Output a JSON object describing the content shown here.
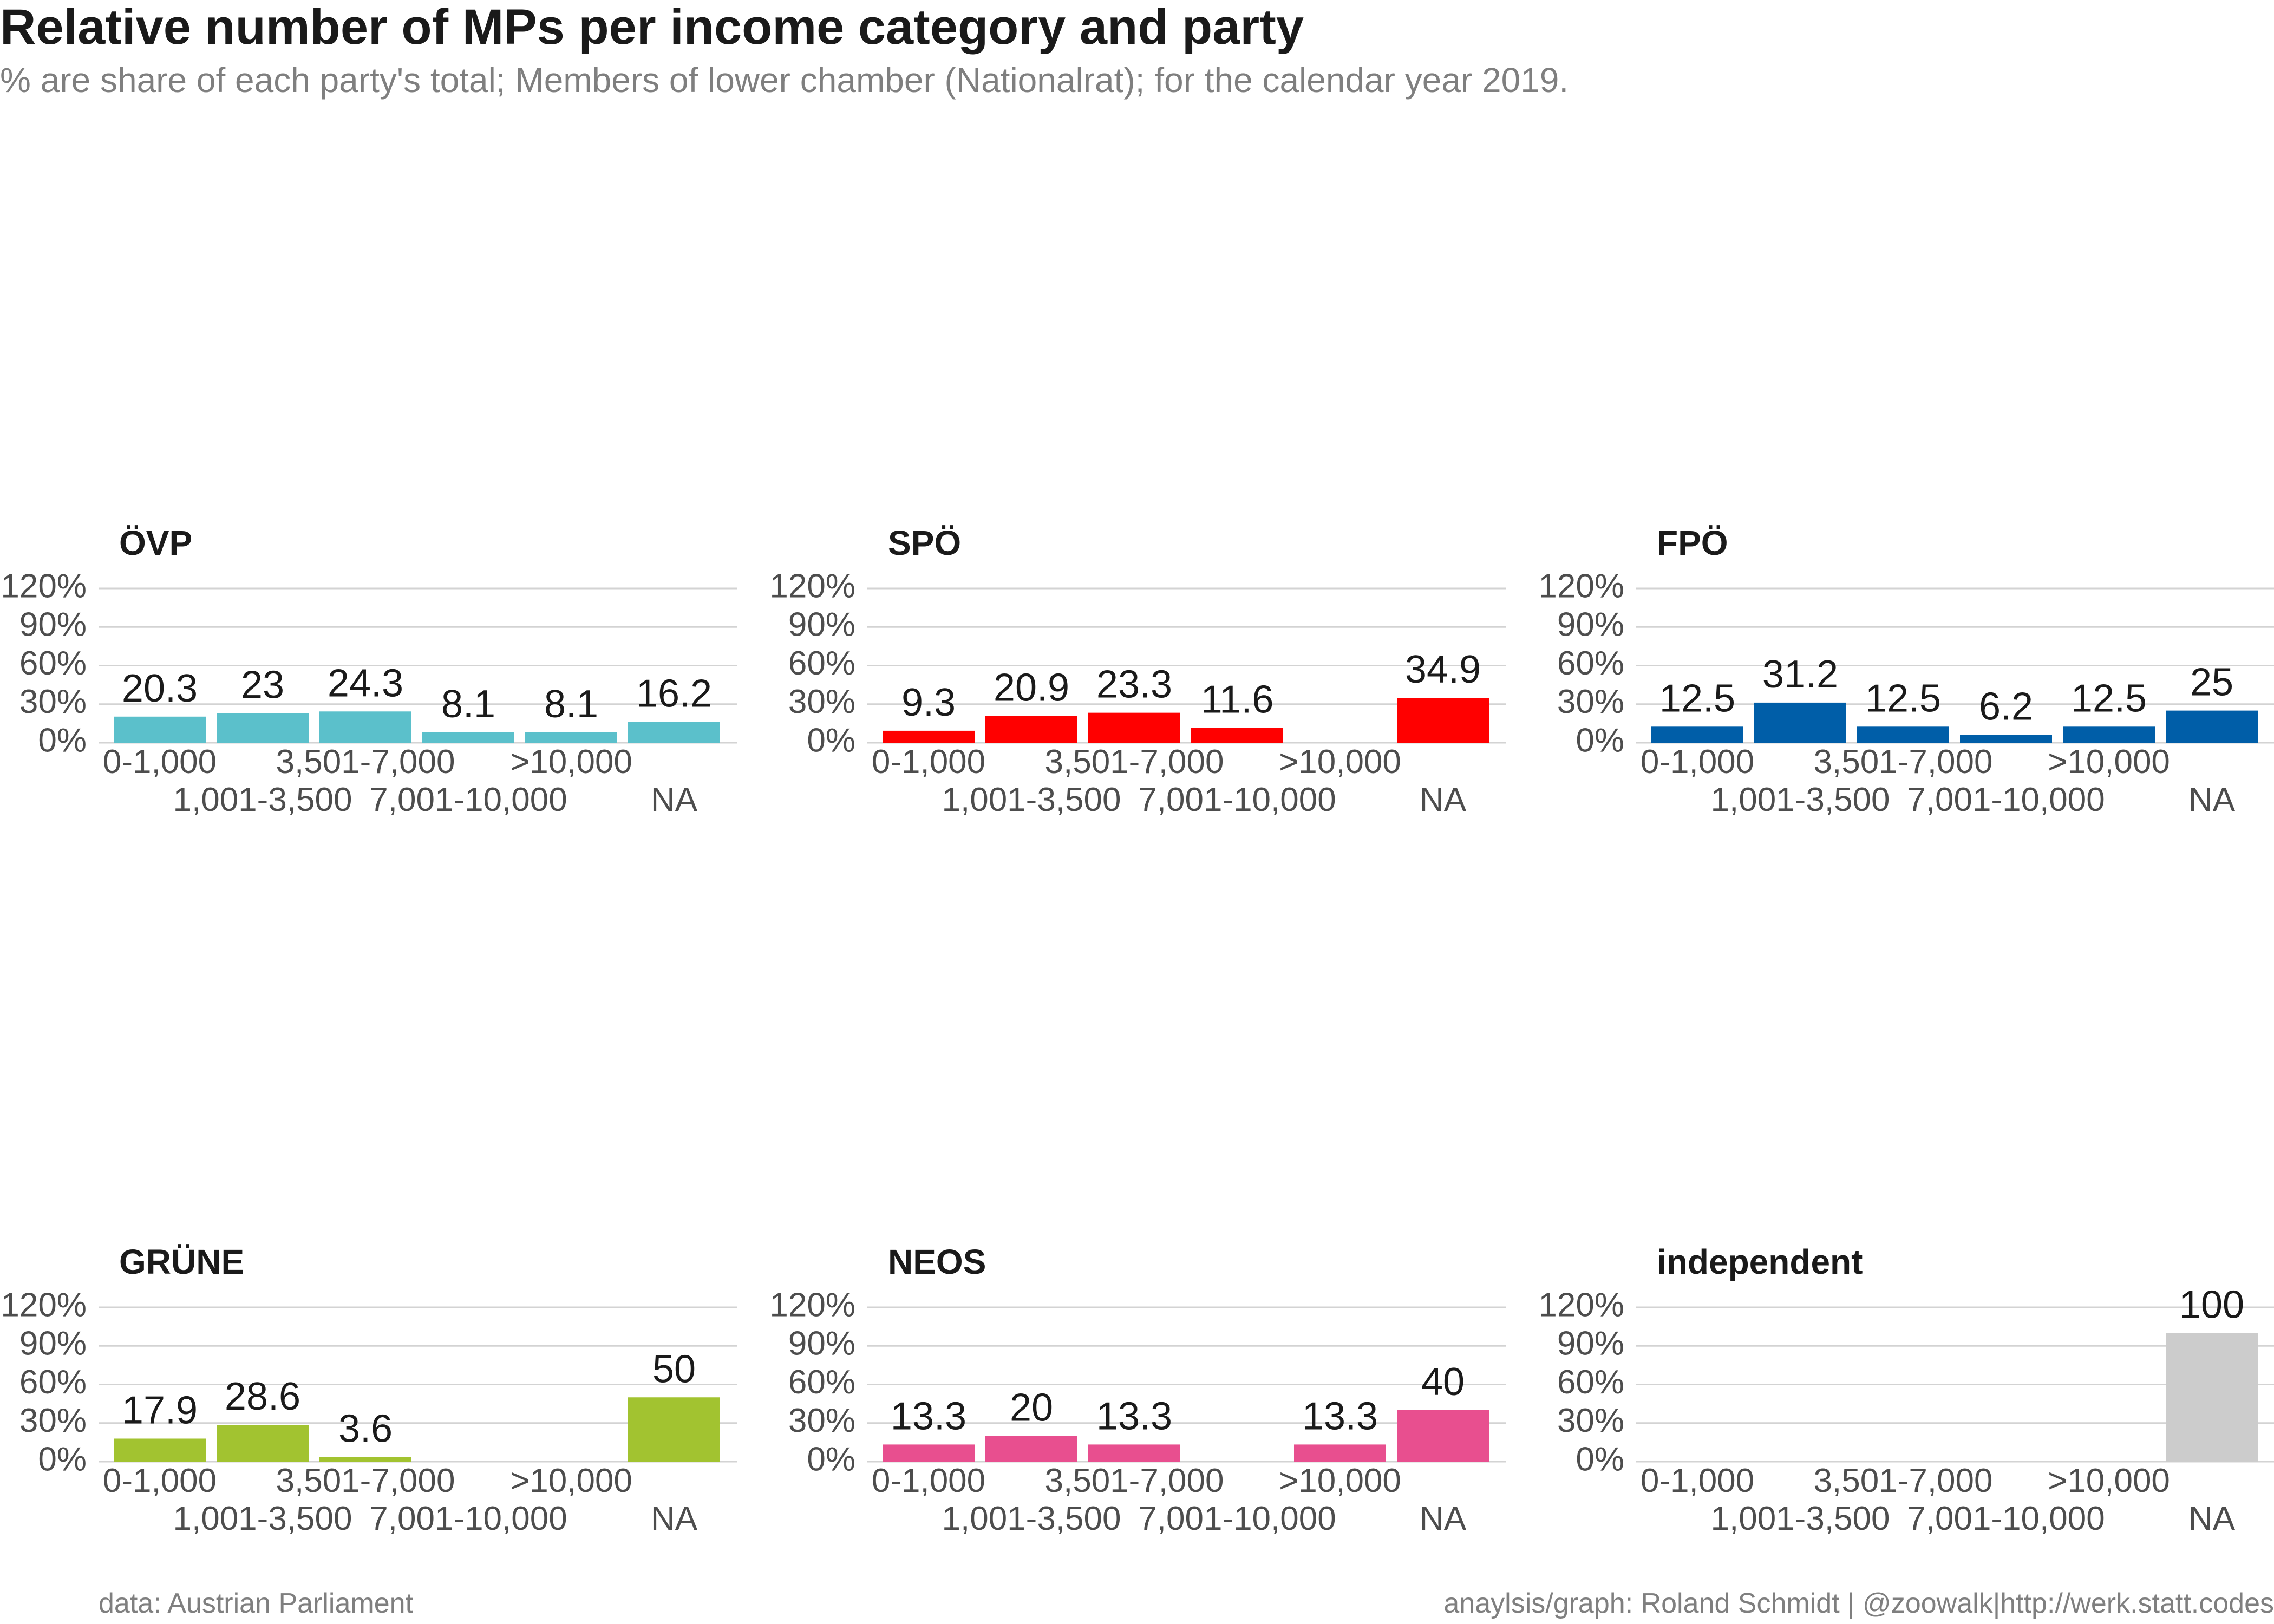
{
  "title": "Relative number of MPs per income category and party",
  "subtitle": "% are share of each party's total; Members of lower chamber (Nationalrat); for the calendar year 2019.",
  "caption_left": "data: Austrian Parliament",
  "caption_right": "anaylsis/graph: Roland Schmidt | @zoowalk|http://werk.statt.codes",
  "colors": {
    "gridline": "#d3d3d3",
    "axis_text": "#4d4d4d",
    "label_text": "#1a1a1a"
  },
  "chart_data": [
    {
      "type": "bar",
      "panel_title": "ÖVP",
      "color": "#5bc0cb",
      "categories": [
        "0-1,000",
        "1,001-3,500",
        "3,501-7,000",
        "7,001-10,000",
        ">10,000",
        "NA"
      ],
      "values": [
        20.3,
        23,
        24.3,
        8.1,
        8.1,
        16.2
      ],
      "labels": [
        "20.3",
        "23",
        "24.3",
        "8.1",
        "8.1",
        "16.2"
      ],
      "ylim": [
        0,
        120
      ],
      "yticks": [
        "0%",
        "30%",
        "60%",
        "90%",
        "120%"
      ],
      "grid": true
    },
    {
      "type": "bar",
      "panel_title": "SPÖ",
      "color": "#ff0000",
      "categories": [
        "0-1,000",
        "1,001-3,500",
        "3,501-7,000",
        "7,001-10,000",
        ">10,000",
        "NA"
      ],
      "values": [
        9.3,
        20.9,
        23.3,
        11.6,
        null,
        34.9
      ],
      "labels": [
        "9.3",
        "20.9",
        "23.3",
        "11.6",
        "",
        "34.9"
      ],
      "ylim": [
        0,
        120
      ],
      "yticks": [
        "0%",
        "30%",
        "60%",
        "90%",
        "120%"
      ],
      "grid": true
    },
    {
      "type": "bar",
      "panel_title": "FPÖ",
      "color": "#005ea8",
      "categories": [
        "0-1,000",
        "1,001-3,500",
        "3,501-7,000",
        "7,001-10,000",
        ">10,000",
        "NA"
      ],
      "values": [
        12.5,
        31.2,
        12.5,
        6.2,
        12.5,
        25
      ],
      "labels": [
        "12.5",
        "31.2",
        "12.5",
        "6.2",
        "12.5",
        "25"
      ],
      "ylim": [
        0,
        120
      ],
      "yticks": [
        "0%",
        "30%",
        "60%",
        "90%",
        "120%"
      ],
      "grid": true
    },
    {
      "type": "bar",
      "panel_title": "GRÜNE",
      "color": "#a2c330",
      "categories": [
        "0-1,000",
        "1,001-3,500",
        "3,501-7,000",
        "7,001-10,000",
        ">10,000",
        "NA"
      ],
      "values": [
        17.9,
        28.6,
        3.6,
        null,
        null,
        50
      ],
      "labels": [
        "17.9",
        "28.6",
        "3.6",
        "",
        "",
        "50"
      ],
      "ylim": [
        0,
        120
      ],
      "yticks": [
        "0%",
        "30%",
        "60%",
        "90%",
        "120%"
      ],
      "grid": true
    },
    {
      "type": "bar",
      "panel_title": "NEOS",
      "color": "#e84f8f",
      "categories": [
        "0-1,000",
        "1,001-3,500",
        "3,501-7,000",
        "7,001-10,000",
        ">10,000",
        "NA"
      ],
      "values": [
        13.3,
        20,
        13.3,
        null,
        13.3,
        40
      ],
      "labels": [
        "13.3",
        "20",
        "13.3",
        "",
        "13.3",
        "40"
      ],
      "ylim": [
        0,
        120
      ],
      "yticks": [
        "0%",
        "30%",
        "60%",
        "90%",
        "120%"
      ],
      "grid": true
    },
    {
      "type": "bar",
      "panel_title": "independent",
      "color": "#cccccc",
      "categories": [
        "0-1,000",
        "1,001-3,500",
        "3,501-7,000",
        "7,001-10,000",
        ">10,000",
        "NA"
      ],
      "values": [
        null,
        null,
        null,
        null,
        null,
        100
      ],
      "labels": [
        "",
        "",
        "",
        "",
        "",
        "100"
      ],
      "ylim": [
        0,
        120
      ],
      "yticks": [
        "0%",
        "30%",
        "60%",
        "90%",
        "120%"
      ],
      "grid": true
    }
  ]
}
